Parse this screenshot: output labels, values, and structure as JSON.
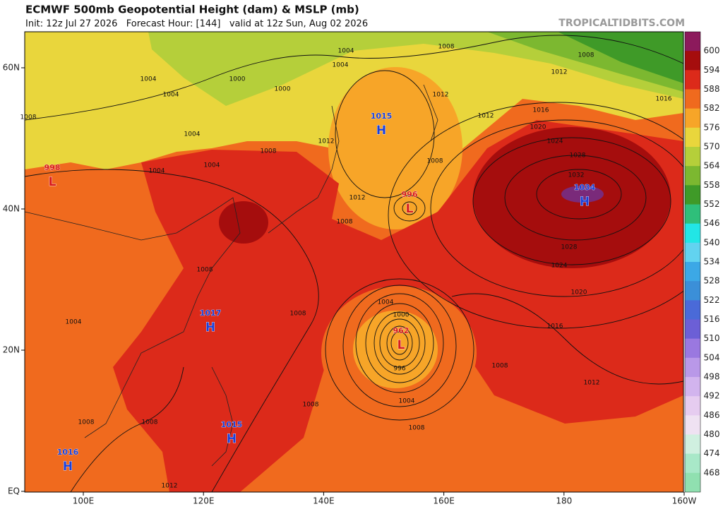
{
  "header": {
    "title": "ECMWF 500mb Geopotential Height (dam) & MSLP (mb)",
    "subtitle": "Init: 12z Jul 27 2026   Forecast Hour: [144]   valid at 12z Sun, Aug 02 2026",
    "credit": "TROPICALTIDBITS.COM"
  },
  "map": {
    "lat_labels": [
      "60N",
      "40N",
      "20N",
      "EQ"
    ],
    "lon_labels": [
      "100E",
      "120E",
      "140E",
      "160E",
      "180",
      "160W"
    ],
    "centers": [
      {
        "letter": "H",
        "value": 1015
      },
      {
        "letter": "L",
        "value": 996
      },
      {
        "letter": "H",
        "value": 1034
      },
      {
        "letter": "L",
        "value": 962
      },
      {
        "letter": "H",
        "value": 1017
      },
      {
        "letter": "H",
        "value": 1015
      },
      {
        "letter": "H",
        "value": 1016
      },
      {
        "letter": "L",
        "value": 998
      }
    ],
    "isobar_labels": [
      1004,
      1008,
      1004,
      1008,
      1012,
      1000,
      1004,
      1004,
      1000,
      1012,
      1016,
      1016,
      1008,
      1004,
      1012,
      1020,
      1024,
      1028,
      1032,
      1012,
      1008,
      1004,
      1004,
      1008,
      1012,
      1008,
      1028,
      1024,
      1020,
      1016,
      1012,
      1008,
      1008,
      1004,
      1000,
      996,
      1004,
      1008,
      1008,
      1008,
      1008,
      1012,
      1008,
      1004
    ]
  },
  "colorbar": [
    {
      "value": 600,
      "color": "#8c1a5c"
    },
    {
      "value": 594,
      "color": "#a50d0d"
    },
    {
      "value": 588,
      "color": "#dc2a1a"
    },
    {
      "value": 582,
      "color": "#f06a1e"
    },
    {
      "value": 576,
      "color": "#f7a528"
    },
    {
      "value": 570,
      "color": "#e9d63c"
    },
    {
      "value": 564,
      "color": "#b5cf3a"
    },
    {
      "value": 558,
      "color": "#7cb830"
    },
    {
      "value": 552,
      "color": "#3f9a28"
    },
    {
      "value": 546,
      "color": "#2fbf7a"
    },
    {
      "value": 540,
      "color": "#22e6e6"
    },
    {
      "value": 534,
      "color": "#62d3f0"
    },
    {
      "value": 528,
      "color": "#3ca8e6"
    },
    {
      "value": 522,
      "color": "#3b8fd8"
    },
    {
      "value": 516,
      "color": "#4a6ad8"
    },
    {
      "value": 510,
      "color": "#6c5fd6"
    },
    {
      "value": 504,
      "color": "#9a78e0"
    },
    {
      "value": 498,
      "color": "#b998e8"
    },
    {
      "value": 492,
      "color": "#d2b4ee"
    },
    {
      "value": 486,
      "color": "#e6ccf0"
    },
    {
      "value": 480,
      "color": "#efe2f2"
    },
    {
      "value": 474,
      "color": "#d0f0e0"
    },
    {
      "value": 468,
      "color": "#a8e8c8"
    }
  ]
}
